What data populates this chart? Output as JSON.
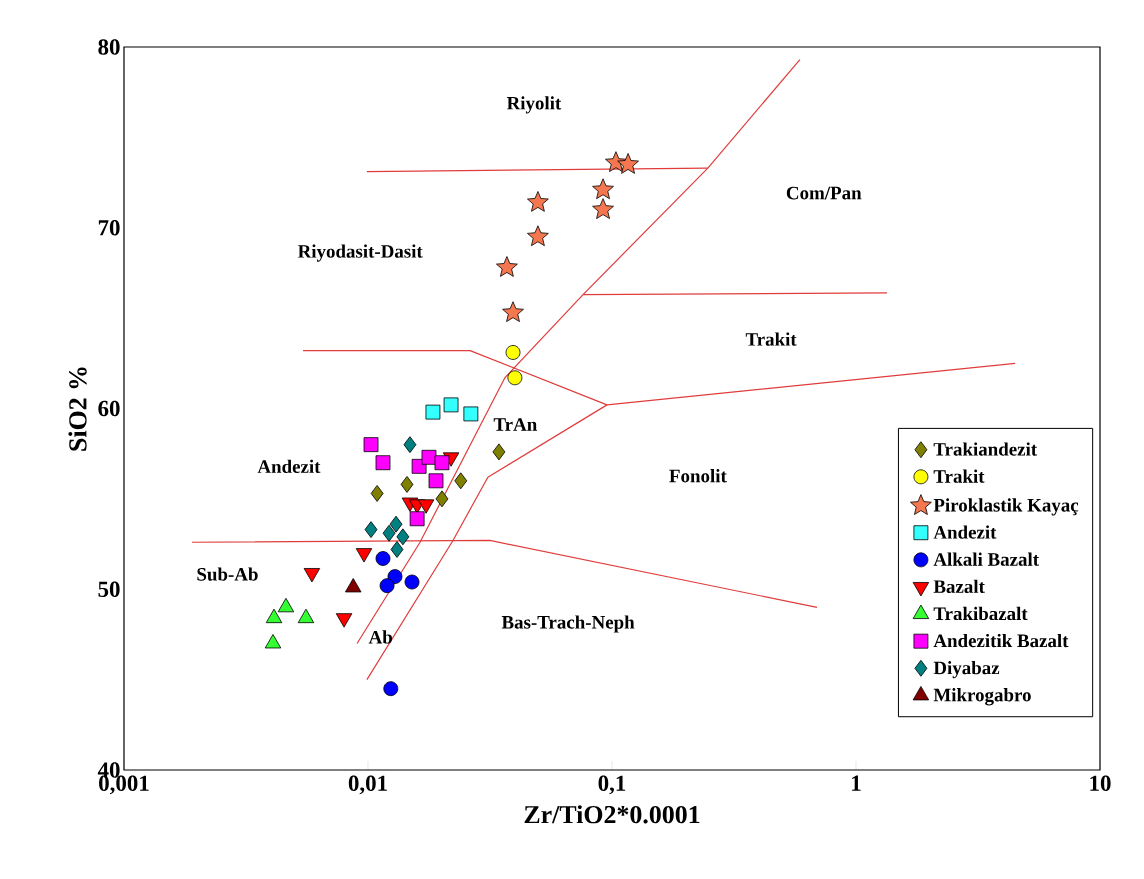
{
  "chart_data": {
    "type": "scatter",
    "xlabel": "Zr/TiO2*0.0001",
    "ylabel": "SiO2 %",
    "log": "x",
    "xlim": [
      0.001,
      10
    ],
    "ylim": [
      40,
      80
    ],
    "xticks": [
      {
        "value": 0.001,
        "label": "0,001"
      },
      {
        "value": 0.01,
        "label": "0,01"
      },
      {
        "value": 0.1,
        "label": "0,1"
      },
      1,
      10
    ],
    "yticks": [
      40,
      50,
      60,
      70,
      80
    ],
    "legend": "bottom right",
    "series": [
      {
        "name": "Trakiandezit",
        "color": "#808000",
        "marker": "diamond",
        "x": [
          0.0109,
          0.01445,
          0.0201,
          0.024,
          0.0344
        ],
        "values": [
          55.3,
          55.8,
          55.0,
          56.0,
          57.6
        ]
      },
      {
        "name": "Trakit",
        "color": "#ffff00",
        "marker": "circle",
        "x": [
          0.0393,
          0.04
        ],
        "values": [
          63.1,
          61.7
        ]
      },
      {
        "name": "Piroklastik Kayaç",
        "color": "#f4774f",
        "marker": "star",
        "x": [
          0.1038,
          0.1164,
          0.0919,
          0.0919,
          0.0497,
          0.0497,
          0.0371,
          0.0393
        ],
        "values": [
          73.6,
          73.5,
          72.1,
          71.0,
          71.4,
          69.5,
          67.8,
          65.3
        ]
      },
      {
        "name": "Andezit",
        "color": "#33ffff",
        "marker": "square",
        "x": [
          0.01846,
          0.0219,
          0.0264
        ],
        "values": [
          59.8,
          60.2,
          59.7
        ]
      },
      {
        "name": "Alkali Bazalt",
        "color": "#0000ff",
        "marker": "circle",
        "x": [
          0.01152,
          0.0129,
          0.01197,
          0.01515,
          0.0124
        ],
        "values": [
          51.7,
          50.7,
          50.2,
          50.4,
          44.5
        ]
      },
      {
        "name": "Bazalt",
        "color": "#ff0000",
        "marker": "triangle-down",
        "x": [
          0.0219,
          0.01486,
          0.0159,
          0.0173,
          0.00963,
          0.00589,
          0.00798
        ],
        "values": [
          57.3,
          54.8,
          54.7,
          54.7,
          52.0,
          50.9,
          48.4
        ]
      },
      {
        "name": "Trakibazalt",
        "color": "#33ff33",
        "marker": "triangle",
        "x": [
          0.00461,
          0.00412,
          0.00557,
          0.00408
        ],
        "values": [
          49.0,
          48.4,
          48.4,
          47.0
        ]
      },
      {
        "name": "Andezitik Bazalt",
        "color": "#ff00ff",
        "marker": "square",
        "x": [
          0.01029,
          0.01152,
          0.0162,
          0.01778,
          0.0201,
          0.019,
          0.0159
        ],
        "values": [
          58.0,
          57.0,
          56.8,
          57.3,
          57.0,
          56.0,
          53.9
        ]
      },
      {
        "name": "Diyabaz",
        "color": "#008080",
        "marker": "diamond",
        "x": [
          0.01486,
          0.01029,
          0.0122,
          0.01303,
          0.0139,
          0.01315
        ],
        "values": [
          58.0,
          53.3,
          53.1,
          53.6,
          52.9,
          52.2
        ]
      },
      {
        "name": "Mikrogabro",
        "color": "#800000",
        "marker": "triangle",
        "x": [
          0.0087
        ],
        "values": [
          50.1
        ]
      },
      {
        "type": "line",
        "color": "#e03c3c",
        "line_style": "solid",
        "x": [
          0.0099,
          0.247
        ],
        "values": [
          73.1,
          73.3
        ]
      },
      {
        "type": "line",
        "color": "#e03c3c",
        "line_style": "solid",
        "x": [
          0.589,
          0.247,
          0.0761,
          0.0364,
          0.01634,
          0.00902
        ],
        "values": [
          79.3,
          73.3,
          66.3,
          61.7,
          52.6,
          47.0
        ]
      },
      {
        "type": "line",
        "color": "#e03c3c",
        "line_style": "solid",
        "x": [
          0.0099,
          0.0223,
          0.031,
          0.0954,
          4.49
        ],
        "values": [
          45.0,
          52.7,
          56.2,
          60.2,
          62.5
        ]
      },
      {
        "type": "line",
        "color": "#e03c3c",
        "line_style": "solid",
        "x": [
          0.00542,
          0.0262,
          0.0954
        ],
        "values": [
          63.2,
          63.2,
          60.2
        ]
      },
      {
        "type": "line",
        "color": "#e03c3c",
        "line_style": "solid",
        "x": [
          0.0019,
          0.0316,
          0.692
        ],
        "values": [
          52.6,
          52.7,
          49.0
        ]
      },
      {
        "type": "line",
        "color": "#e03c3c",
        "line_style": "solid",
        "x": [
          0.0761,
          1.34
        ],
        "values": [
          66.3,
          66.4
        ]
      }
    ],
    "annotations": [
      "Riyolit",
      "Com/Pan",
      "Riyodasit-Dasit",
      "Trakit",
      "TrAn",
      "Andezit",
      "Fonolit",
      "Sub-Ab",
      "Ab",
      "Bas-Trach-Neph"
    ]
  }
}
